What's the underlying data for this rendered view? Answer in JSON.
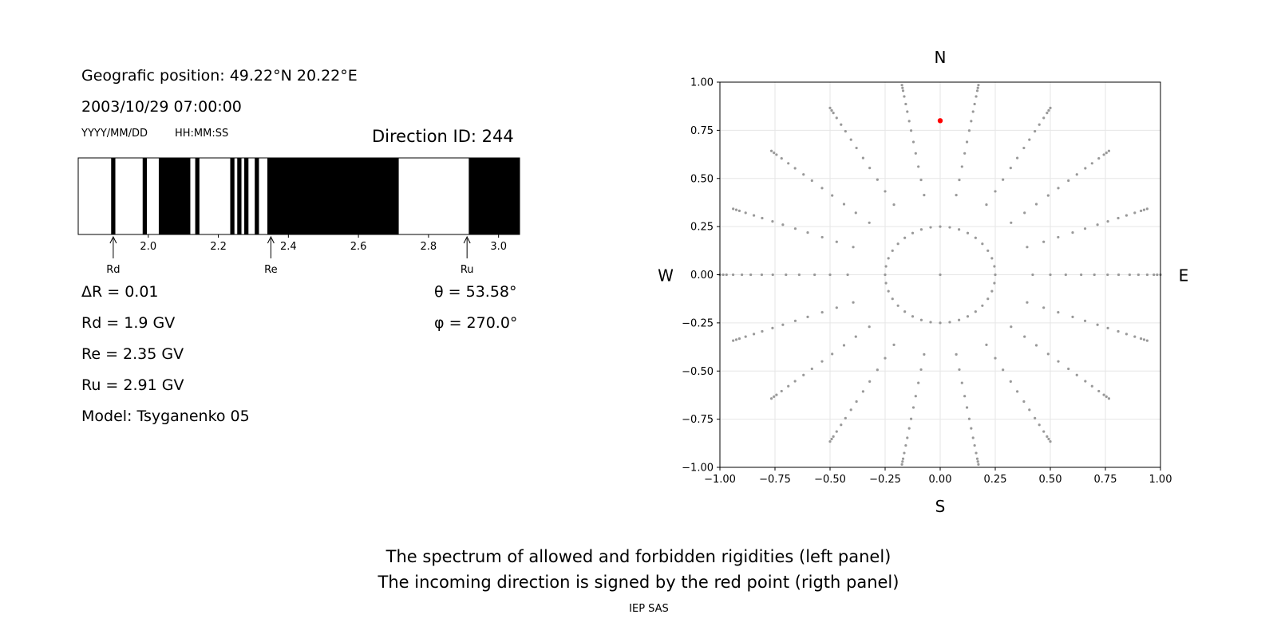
{
  "header": {
    "position": "Geografic position: 49.22°N 20.22°E",
    "datetime": "2003/10/29 07:00:00",
    "date_format": "YYYY/MM/DD",
    "time_format": "HH:MM:SS",
    "direction": "Direction ID: 244"
  },
  "params": {
    "delta_r": "ΔR = 0.01",
    "rd": "Rd = 1.9 GV",
    "re": "Re = 2.35 GV",
    "ru": "Ru = 2.91 GV",
    "model": "Model: Tsyganenko 05",
    "theta": "θ = 53.58°",
    "phi": "φ = 270.0°"
  },
  "caption": {
    "line1": "The spectrum of allowed and forbidden rigidities (left panel)",
    "line2": "The incoming direction is signed by the red point (rigth panel)",
    "credit": "IEP SAS"
  },
  "chart_data": [
    {
      "type": "bar",
      "xlim": [
        1.8,
        3.06
      ],
      "xticks": [
        "2.0",
        "2.2",
        "2.4",
        "2.6",
        "2.8",
        "3.0"
      ],
      "forbidden_bands": [
        [
          1.894,
          1.906
        ],
        [
          1.984,
          1.996
        ],
        [
          2.03,
          2.12
        ],
        [
          2.134,
          2.146
        ],
        [
          2.234,
          2.246
        ],
        [
          2.254,
          2.266
        ],
        [
          2.274,
          2.286
        ],
        [
          2.304,
          2.316
        ],
        [
          2.34,
          2.715
        ],
        [
          2.915,
          3.06
        ]
      ],
      "markers": [
        {
          "label": "Rd",
          "value": 1.9
        },
        {
          "label": "Re",
          "value": 2.35
        },
        {
          "label": "Ru",
          "value": 2.91
        }
      ],
      "colors": {
        "forbidden": "#000000",
        "allowed": "#ffffff"
      }
    },
    {
      "type": "scatter",
      "xlim": [
        -1.0,
        1.0
      ],
      "ylim": [
        -1.0,
        1.0
      ],
      "ticks": [
        "−1.00",
        "−0.75",
        "−0.50",
        "−0.25",
        "0.00",
        "0.25",
        "0.50",
        "0.75",
        "1.00"
      ],
      "grid": true,
      "compass": {
        "north": "N",
        "south": "S",
        "west": "W",
        "east": "E"
      },
      "ring_radii": [
        0,
        0.25,
        0.42,
        0.5,
        0.57,
        0.64,
        0.7,
        0.76,
        0.81,
        0.86,
        0.9,
        0.94,
        0.97,
        0.985,
        1.0
      ],
      "azimuth_step_deg": 10,
      "inner_ring_step_deg": 10,
      "highlight_point": {
        "x": 0.0,
        "y": 0.8
      },
      "colors": {
        "points": "#999999",
        "highlight": "#ff0000",
        "grid": "#e6e6e6"
      }
    }
  ]
}
